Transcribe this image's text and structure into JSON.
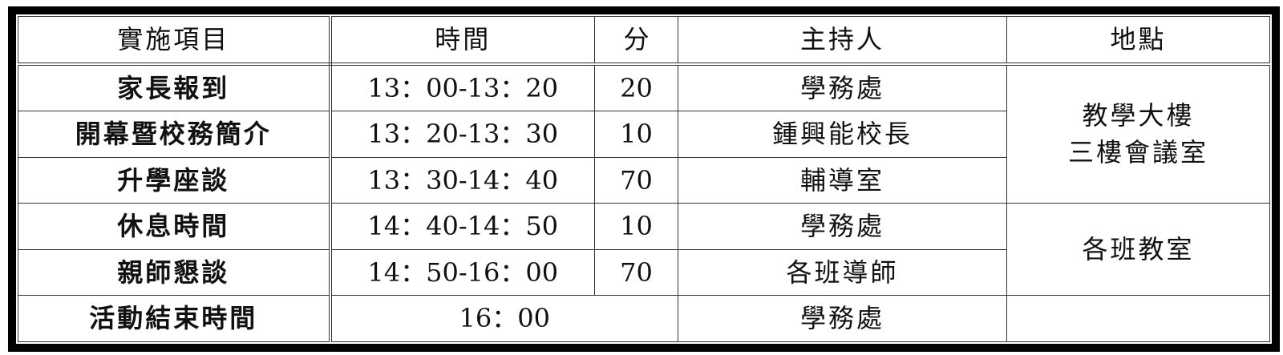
{
  "headers": [
    "實施項目",
    "時間",
    "分",
    "主持人",
    "地點"
  ],
  "rows": [
    {
      "item": "家長報到",
      "time": "13：00-13：20",
      "minutes": "20",
      "host": "學務處"
    },
    {
      "item": "開幕暨校務簡介",
      "time": "13：20-13：30",
      "minutes": "10",
      "host": "鍾興能校長"
    },
    {
      "item": "升學座談",
      "time": "13：30-14：40",
      "minutes": "70",
      "host": "輔導室"
    },
    {
      "item": "休息時間",
      "time": "14：40-14：50",
      "minutes": "10",
      "host": "學務處"
    },
    {
      "item": "親師懇談",
      "time": "14：50-16：00",
      "minutes": "70",
      "host": "各班導師"
    },
    {
      "item": "活動結束時間",
      "time": "16：00",
      "host": "學務處"
    }
  ],
  "locations": {
    "first_line1": "教學大樓",
    "first_line2": "三樓會議室",
    "second": "各班教室"
  }
}
